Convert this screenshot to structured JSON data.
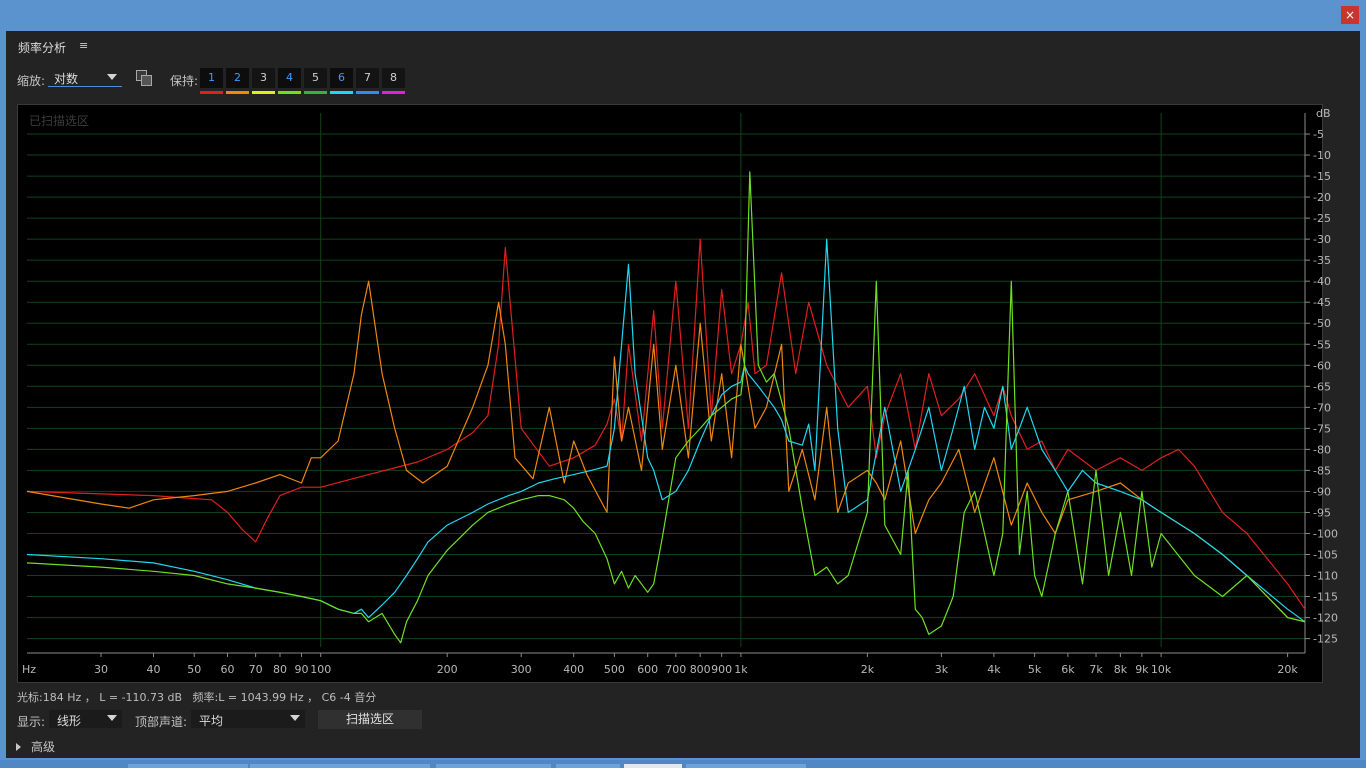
{
  "window": {
    "close_symbol": "×"
  },
  "panel": {
    "title": "频率分析",
    "menu_symbol": "≡"
  },
  "toolbar": {
    "zoom_label": "缩放:",
    "zoom_value": "对数",
    "hold_label": "保持:",
    "hold_slots": [
      {
        "label": "1",
        "color": "#e01f1f",
        "active": true
      },
      {
        "label": "2",
        "color": "#f0870f",
        "active": true
      },
      {
        "label": "3",
        "color": "#e8e81a",
        "active": false
      },
      {
        "label": "4",
        "color": "#6fe020",
        "active": true
      },
      {
        "label": "5",
        "color": "#3fae3f",
        "active": false
      },
      {
        "label": "6",
        "color": "#1fd8f0",
        "active": true
      },
      {
        "label": "7",
        "color": "#2f8cf0",
        "active": false
      },
      {
        "label": "8",
        "color": "#e01fe0",
        "active": false
      }
    ]
  },
  "graph": {
    "scan_label": "已扫描选区",
    "db_unit": "dB",
    "y_ticks": [
      "-5",
      "-10",
      "-15",
      "-20",
      "-25",
      "-30",
      "-35",
      "-40",
      "-45",
      "-50",
      "-55",
      "-60",
      "-65",
      "-70",
      "-75",
      "-80",
      "-85",
      "-90",
      "-95",
      "-100",
      "-105",
      "-110",
      "-115",
      "-120",
      "-125"
    ],
    "x_unit": "Hz",
    "x_ticks": [
      "30",
      "40",
      "50",
      "60",
      "70",
      "80",
      "90",
      "100",
      "200",
      "300",
      "400",
      "500",
      "600",
      "700",
      "800",
      "900",
      "1k",
      "2k",
      "3k",
      "4k",
      "5k",
      "6k",
      "7k",
      "8k",
      "9k",
      "10k",
      "20k"
    ]
  },
  "chart_data": {
    "type": "line",
    "x_scale": "log",
    "xlabel": "Hz",
    "ylabel": "dB",
    "xlim": [
      20,
      22000
    ],
    "ylim": [
      -127,
      0
    ],
    "series": [
      {
        "color": "#e01f1f",
        "x": [
          20,
          40,
          55,
          60,
          65,
          70,
          75,
          80,
          90,
          100,
          130,
          170,
          200,
          230,
          250,
          265,
          275,
          300,
          350,
          400,
          450,
          480,
          500,
          520,
          540,
          580,
          620,
          650,
          700,
          750,
          800,
          850,
          900,
          950,
          1000,
          1040,
          1080,
          1150,
          1250,
          1350,
          1450,
          1600,
          1800,
          2000,
          2100,
          2200,
          2400,
          2600,
          2800,
          3000,
          3300,
          3600,
          4000,
          4200,
          4400,
          4800,
          5200,
          5600,
          6000,
          7000,
          8000,
          9000,
          10000,
          11000,
          12000,
          14000,
          16000,
          20000,
          22000
        ],
        "y": [
          -90,
          -91,
          -92,
          -95,
          -99,
          -102,
          -96,
          -91,
          -89,
          -89,
          -86,
          -83,
          -80,
          -76,
          -72,
          -55,
          -32,
          -75,
          -84,
          -82,
          -79,
          -74,
          -68,
          -78,
          -55,
          -78,
          -47,
          -75,
          -40,
          -75,
          -30,
          -72,
          -42,
          -62,
          -55,
          -45,
          -62,
          -60,
          -38,
          -62,
          -45,
          -60,
          -70,
          -65,
          -82,
          -72,
          -62,
          -80,
          -62,
          -72,
          -68,
          -62,
          -72,
          -65,
          -72,
          -80,
          -78,
          -85,
          -80,
          -85,
          -82,
          -85,
          -82,
          -80,
          -84,
          -95,
          -100,
          -112,
          -118
        ]
      },
      {
        "color": "#f0870f",
        "x": [
          20,
          30,
          35,
          40,
          50,
          60,
          70,
          80,
          90,
          95,
          100,
          110,
          120,
          125,
          130,
          140,
          150,
          160,
          175,
          200,
          230,
          250,
          265,
          275,
          290,
          320,
          350,
          380,
          400,
          430,
          480,
          500,
          520,
          540,
          580,
          620,
          650,
          700,
          750,
          800,
          850,
          900,
          950,
          1000,
          1040,
          1080,
          1150,
          1250,
          1300,
          1400,
          1500,
          1600,
          1700,
          1800,
          2000,
          2100,
          2200,
          2400,
          2600,
          2800,
          3000,
          3300,
          3600,
          4000,
          4400,
          4800,
          5200,
          5600,
          6000,
          7000,
          8000,
          9000,
          10000,
          12000,
          14000,
          16000,
          20000,
          22000
        ],
        "y": [
          -90,
          -93,
          -94,
          -92,
          -91,
          -90,
          -88,
          -86,
          -88,
          -82,
          -82,
          -78,
          -62,
          -48,
          -40,
          -62,
          -75,
          -85,
          -88,
          -84,
          -70,
          -60,
          -45,
          -55,
          -82,
          -87,
          -70,
          -88,
          -78,
          -86,
          -95,
          -58,
          -78,
          -70,
          -85,
          -55,
          -80,
          -60,
          -82,
          -50,
          -78,
          -62,
          -82,
          -55,
          -65,
          -75,
          -70,
          -55,
          -90,
          -80,
          -92,
          -70,
          -95,
          -88,
          -85,
          -88,
          -92,
          -78,
          -100,
          -92,
          -88,
          -80,
          -95,
          -82,
          -98,
          -88,
          -95,
          -100,
          -92,
          -90,
          -88,
          -92,
          -95,
          -100,
          -105,
          -110,
          -120,
          -121
        ]
      },
      {
        "color": "#1fd8f0",
        "x": [
          20,
          30,
          40,
          50,
          60,
          70,
          80,
          90,
          100,
          110,
          120,
          125,
          130,
          140,
          150,
          160,
          170,
          180,
          200,
          230,
          250,
          280,
          300,
          330,
          360,
          400,
          440,
          480,
          500,
          520,
          540,
          560,
          600,
          620,
          650,
          700,
          750,
          800,
          850,
          900,
          950,
          1000,
          1020,
          1040,
          1100,
          1200,
          1250,
          1300,
          1400,
          1450,
          1500,
          1600,
          1700,
          1800,
          2000,
          2200,
          2400,
          2600,
          2800,
          3000,
          3200,
          3400,
          3600,
          3800,
          4000,
          4200,
          4400,
          4600,
          4800,
          5200,
          5600,
          6000,
          6500,
          7000,
          8000,
          9000,
          10000,
          12000,
          14000,
          16000,
          20000,
          22000
        ],
        "y": [
          -105,
          -106,
          -107,
          -109,
          -111,
          -113,
          -114,
          -115,
          -116,
          -118,
          -119,
          -118,
          -120,
          -117,
          -114,
          -110,
          -106,
          -102,
          -98,
          -95,
          -93,
          -91,
          -90,
          -88,
          -87,
          -86,
          -85,
          -84,
          -75,
          -55,
          -36,
          -62,
          -82,
          -85,
          -92,
          -90,
          -85,
          -78,
          -72,
          -67,
          -65,
          -64,
          -60,
          -62,
          -65,
          -70,
          -73,
          -78,
          -79,
          -74,
          -85,
          -30,
          -75,
          -95,
          -92,
          -70,
          -90,
          -80,
          -70,
          -85,
          -75,
          -65,
          -80,
          -70,
          -75,
          -65,
          -80,
          -75,
          -70,
          -80,
          -85,
          -90,
          -85,
          -88,
          -90,
          -92,
          -95,
          -100,
          -105,
          -110,
          -118,
          -121
        ]
      },
      {
        "color": "#6fe020",
        "x": [
          20,
          30,
          40,
          50,
          60,
          70,
          80,
          90,
          100,
          110,
          120,
          125,
          130,
          140,
          150,
          155,
          160,
          170,
          180,
          200,
          230,
          250,
          280,
          300,
          330,
          350,
          380,
          400,
          420,
          450,
          480,
          500,
          520,
          540,
          560,
          600,
          620,
          650,
          700,
          750,
          800,
          850,
          900,
          950,
          1000,
          1020,
          1050,
          1100,
          1150,
          1200,
          1300,
          1400,
          1500,
          1600,
          1700,
          1800,
          2000,
          2100,
          2200,
          2400,
          2500,
          2600,
          2700,
          2800,
          3000,
          3200,
          3400,
          3600,
          3800,
          4000,
          4200,
          4400,
          4600,
          4800,
          5000,
          5200,
          5600,
          6000,
          6500,
          7000,
          7500,
          8000,
          8500,
          9000,
          9500,
          10000,
          12000,
          14000,
          16000,
          20000,
          22000
        ],
        "y": [
          -107,
          -108,
          -109,
          -110,
          -112,
          -113,
          -114,
          -115,
          -116,
          -118,
          -119,
          -119,
          -121,
          -119,
          -124,
          -126,
          -121,
          -116,
          -110,
          -104,
          -98,
          -95,
          -93,
          -92,
          -91,
          -91,
          -92,
          -94,
          -97,
          -100,
          -106,
          -112,
          -109,
          -113,
          -110,
          -114,
          -112,
          -101,
          -82,
          -78,
          -75,
          -72,
          -70,
          -68,
          -67,
          -60,
          -14,
          -60,
          -64,
          -62,
          -75,
          -94,
          -110,
          -108,
          -112,
          -110,
          -95,
          -40,
          -98,
          -105,
          -85,
          -118,
          -120,
          -124,
          -122,
          -115,
          -95,
          -90,
          -100,
          -110,
          -100,
          -40,
          -105,
          -90,
          -110,
          -115,
          -100,
          -90,
          -112,
          -85,
          -110,
          -95,
          -110,
          -90,
          -108,
          -100,
          -110,
          -115,
          -110,
          -120,
          -121
        ]
      }
    ]
  },
  "status": {
    "text": "光标:184 Hz ， L = -110.73 dB   频率:L = 1043.99 Hz ， C6 -4 音分"
  },
  "controls": {
    "display_label": "显示:",
    "display_value": "线形",
    "top_channel_label": "顶部声道:",
    "top_channel_value": "平均",
    "scan_button": "扫描选区",
    "advanced_label": "高级"
  }
}
